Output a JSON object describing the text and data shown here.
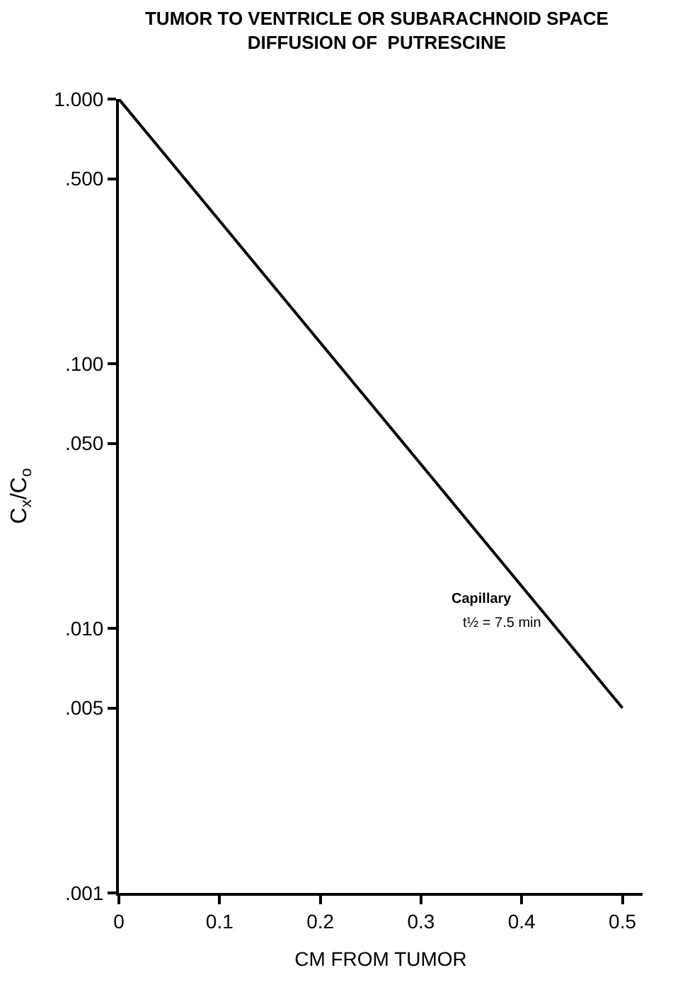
{
  "chart_data": {
    "type": "line",
    "title": "TUMOR TO VENTRICLE OR SUBARACHNOID SPACE\nDIFFUSION OF  PUTRESCINE",
    "xlabel": "CM FROM TUMOR",
    "ylabel": "C$_{x}$/C$_{o}$",
    "x": [
      0,
      0.5
    ],
    "series": [
      {
        "color": "#000000",
        "values": [
          1.0,
          0.005
        ]
      }
    ],
    "log": "y",
    "marker": "none",
    "line_style": "solid",
    "xlim": [
      0,
      0.52
    ],
    "xticks": [
      0,
      0.1,
      0.2,
      0.3,
      0.4,
      0.5
    ],
    "ylim": [
      0.001,
      1.0
    ],
    "yticks": [
      {
        "value": 1.0,
        "label": "1.000"
      },
      {
        "value": 0.5,
        "label": ".500"
      },
      {
        "value": 0.1,
        "label": ".100"
      },
      {
        "value": 0.05,
        "label": ".050"
      },
      {
        "value": 0.01,
        "label": ".010"
      },
      {
        "value": 0.005,
        "label": ".005"
      },
      {
        "value": 0.001,
        "label": ".001"
      }
    ],
    "annotations": [
      "Capillary",
      "t½ = 7.5 min"
    ]
  }
}
